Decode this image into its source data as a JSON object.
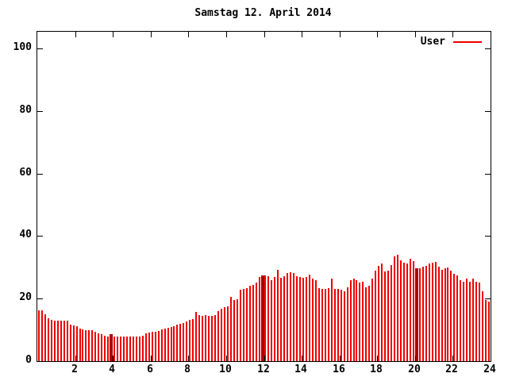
{
  "title": "Samstag 12. April 2014",
  "legend": {
    "label": "User"
  },
  "colors": {
    "bar": "#ee0000",
    "dense_bar": "#aa0000",
    "axis": "#000000",
    "background": "#ffffff",
    "text": "#000000"
  },
  "chart_data": {
    "type": "bar",
    "title": "Samstag 12. April 2014",
    "series_name": "User",
    "x_unit": "hour-of-day",
    "sample_interval_minutes": 10,
    "xlim": [
      0,
      24
    ],
    "ylim": [
      0,
      105
    ],
    "grid": false,
    "legend_position": "top-right-inside",
    "x_tick_values": [
      2,
      4,
      6,
      8,
      10,
      12,
      14,
      16,
      18,
      20,
      22,
      24
    ],
    "x_tick_labels": [
      "2",
      "4",
      "6",
      "8",
      "10",
      "12",
      "14",
      "16",
      "18",
      "20",
      "22",
      "24"
    ],
    "y_tick_values": [
      0,
      20,
      40,
      60,
      80,
      100
    ],
    "y_tick_labels": [
      "0",
      "20",
      "40",
      "60",
      "80",
      "100"
    ],
    "dense_bar_indices": [
      23,
      71,
      120
    ],
    "values": [
      16.2,
      16.2,
      15.0,
      13.7,
      13.1,
      13.0,
      13.0,
      12.9,
      13.0,
      12.9,
      11.6,
      11.4,
      11.2,
      10.4,
      10.2,
      10.0,
      9.9,
      9.9,
      9.4,
      9.0,
      8.6,
      8.2,
      7.9,
      8.6,
      7.9,
      7.9,
      7.9,
      7.8,
      7.9,
      7.8,
      7.9,
      7.8,
      7.9,
      8.0,
      9.0,
      9.2,
      9.5,
      9.5,
      9.7,
      10.2,
      10.4,
      10.6,
      11.0,
      11.2,
      11.6,
      11.9,
      12.3,
      12.7,
      13.1,
      13.5,
      15.8,
      14.6,
      14.4,
      14.6,
      14.5,
      14.4,
      14.6,
      15.9,
      16.7,
      17.3,
      17.4,
      20.5,
      19.5,
      19.7,
      22.8,
      23.2,
      23.4,
      24.0,
      24.3,
      25.2,
      27.0,
      27.4,
      27.5,
      27.2,
      26.0,
      26.8,
      29.2,
      26.7,
      27.2,
      28.1,
      28.4,
      28.2,
      27.2,
      26.8,
      26.6,
      27.0,
      27.7,
      26.4,
      26.0,
      23.4,
      23.2,
      23.0,
      23.3,
      26.5,
      23.2,
      23.0,
      22.9,
      22.3,
      23.5,
      26.0,
      26.3,
      25.9,
      25.0,
      25.3,
      23.5,
      24.2,
      26.5,
      28.8,
      30.5,
      31.1,
      28.6,
      28.9,
      30.6,
      33.5,
      34.0,
      32.2,
      31.5,
      31.2,
      32.8,
      31.9,
      29.8,
      29.8,
      30.2,
      30.4,
      31.2,
      31.5,
      31.8,
      30.2,
      29.3,
      29.6,
      30.0,
      28.8,
      28.0,
      27.3,
      25.8,
      25.5,
      26.3,
      25.5,
      26.5,
      25.5,
      25.0,
      22.4,
      19.5,
      19.0
    ]
  }
}
